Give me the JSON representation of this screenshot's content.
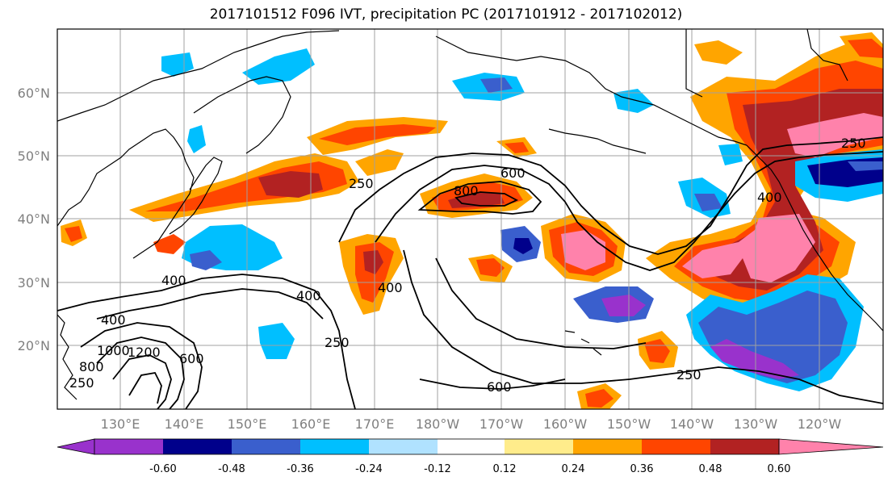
{
  "title": "2017101512 F096 IVT, precipitation PC (2017101912 - 2017102012)",
  "map": {
    "lat_labels": [
      "60°N",
      "50°N",
      "40°N",
      "30°N",
      "20°N"
    ],
    "lon_labels": [
      "130°E",
      "140°E",
      "150°E",
      "160°E",
      "170°E",
      "180°W",
      "170°W",
      "160°W",
      "150°W",
      "140°W",
      "130°W",
      "120°W"
    ],
    "contour_labels": [
      "250",
      "800",
      "600",
      "400",
      "250",
      "400",
      "400",
      "400",
      "1200",
      "1000",
      "800",
      "600",
      "250",
      "600",
      "250",
      "400",
      "250"
    ]
  },
  "colorbar": {
    "colors": [
      "#9932cc",
      "#00008b",
      "#3a5fcd",
      "#00bfff",
      "#b0e2ff",
      "#ffffff",
      "#ffec8b",
      "#ffa500",
      "#ff4500",
      "#b22222",
      "#ff82ab"
    ],
    "tick_labels": [
      "-0.60",
      "-0.48",
      "-0.36",
      "-0.24",
      "-0.12",
      "0.12",
      "0.24",
      "0.36",
      "0.48",
      "0.60"
    ]
  }
}
